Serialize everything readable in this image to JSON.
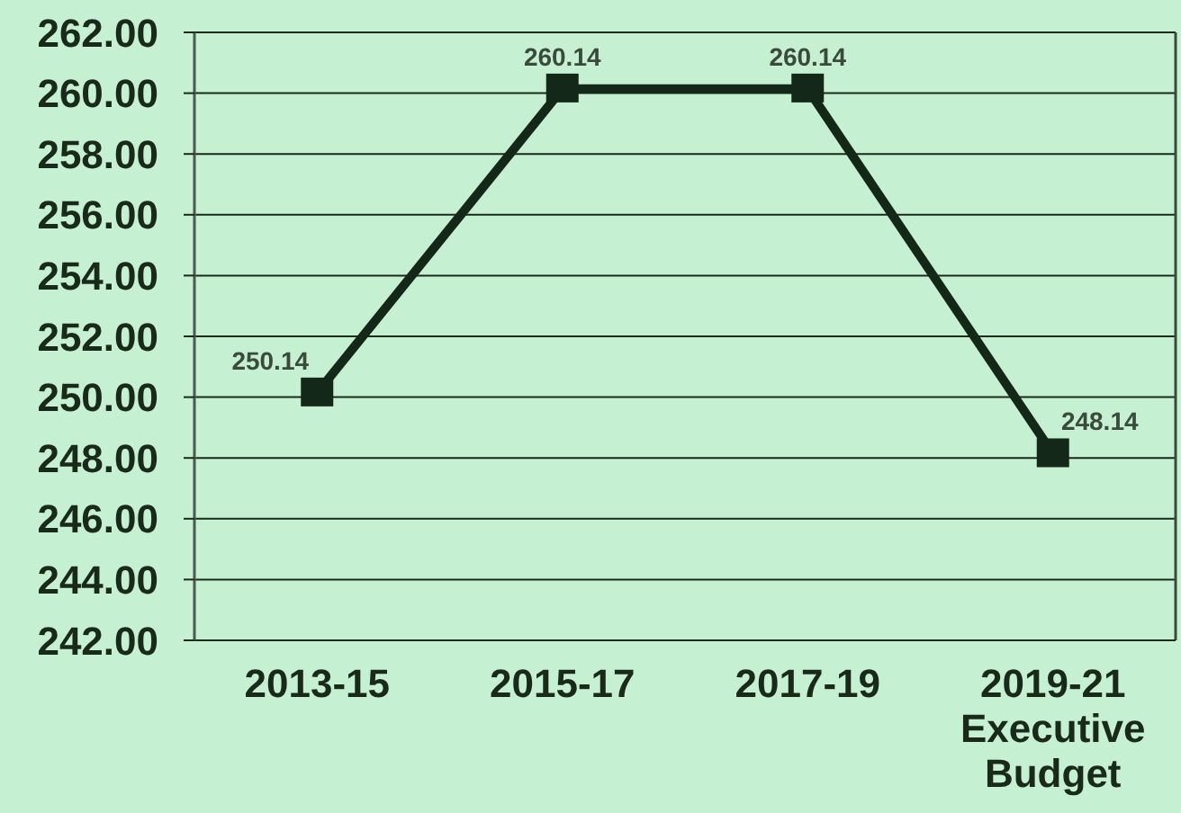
{
  "chart_data": {
    "type": "line",
    "categories": [
      "2013-15",
      "2015-17",
      "2017-19",
      "2019-21\nExecutive\nBudget"
    ],
    "values": [
      250.14,
      260.14,
      260.14,
      248.14
    ],
    "color": "#14281a",
    "marker": "square",
    "data_labels": true,
    "ylim": [
      242,
      262
    ],
    "yticks": [
      {
        "value": 242,
        "label": "242.00"
      },
      {
        "value": 244,
        "label": "244.00"
      },
      {
        "value": 246,
        "label": "246.00"
      },
      {
        "value": 248,
        "label": "248.00"
      },
      {
        "value": 250,
        "label": "250.00"
      },
      {
        "value": 252,
        "label": "252.00"
      },
      {
        "value": 254,
        "label": "254.00"
      },
      {
        "value": 256,
        "label": "256.00"
      },
      {
        "value": 258,
        "label": "258.00"
      },
      {
        "value": 260,
        "label": "260.00"
      },
      {
        "value": 262,
        "label": "262.00"
      }
    ],
    "grid": "y"
  }
}
